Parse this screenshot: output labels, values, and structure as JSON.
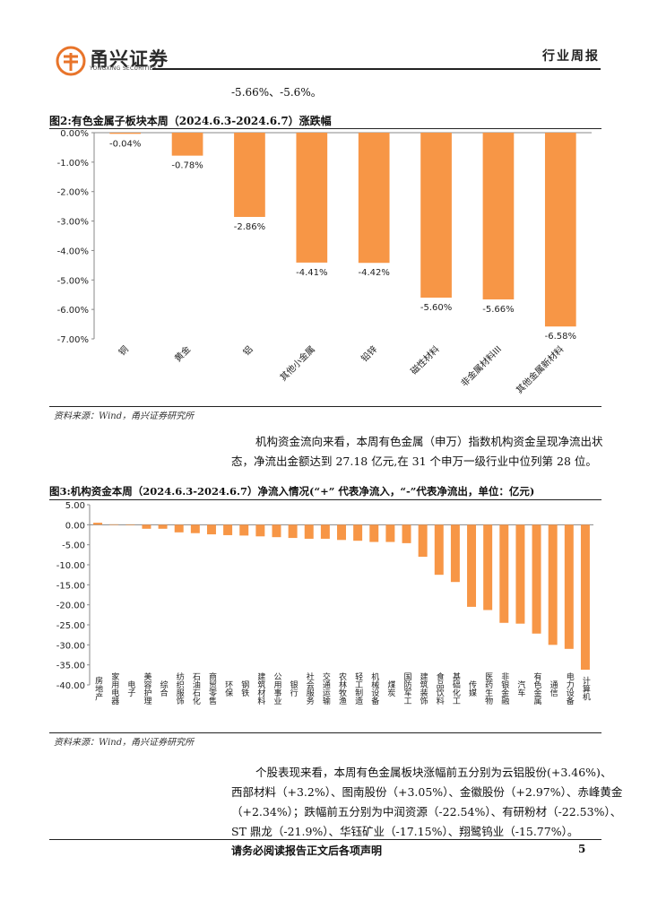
{
  "header": {
    "logo_cn": "甬兴证券",
    "logo_en": "YONGXING SECURITIES",
    "report_type": "行业周报"
  },
  "fragment_text": "-5.66%、-5.6%。",
  "figure2": {
    "title": "图2:有色金属子板块本周（2024.6.3-2024.6.7）涨跌幅",
    "source": "资料来源：Wind，甬兴证券研究所"
  },
  "paragraph1": {
    "line1": "机构资金流向来看，本周有色金属（申万）指数机构资金呈现净流出状",
    "line2": "态，净流出金额达到 27.18 亿元,在 31 个申万一级行业中位列第 28 位。"
  },
  "figure3": {
    "title": "图3:机构资金本周（2024.6.3-2024.6.7）净流入情况(“+” 代表净流入，“-”代表净流出，单位：亿元)",
    "source": "资料来源：Wind，甬兴证券研究所"
  },
  "paragraph2": {
    "line1": "个股表现来看，本周有色金属板块涨幅前五分别为云铝股份(+3.46%)、",
    "line2": "西部材料（+3.2%）、图南股份（+3.05%）、金徽股份（+2.97%）、赤峰黄金",
    "line3": "（+2.34%）；跌幅前五分别为中润资源（-22.54%）、有研粉材（-22.53%）、",
    "line4": "ST 鼎龙（-21.9%）、华钰矿业（-17.15%）、翔鹭钨业（-15.77%）。"
  },
  "footer": {
    "disclaimer": "请务必阅读报告正文后各项声明",
    "page": "5"
  },
  "colors": {
    "bar": "#F79646",
    "accent": "#E8742A"
  },
  "chart_data": [
    {
      "type": "bar",
      "categories": [
        "铜",
        "黄金",
        "铝",
        "其他小金属",
        "铅锌",
        "磁性材料",
        "非金属材料III",
        "其他金属新材料"
      ],
      "values": [
        -0.04,
        -0.78,
        -2.86,
        -4.41,
        -4.42,
        -5.6,
        -5.66,
        -6.58
      ],
      "value_labels": [
        "-0.04%",
        "-0.78%",
        "-2.86%",
        "-4.41%",
        "-4.42%",
        "-5.60%",
        "-5.66%",
        "-6.58%"
      ],
      "yticks": [
        "0.00%",
        "-1.00%",
        "-2.00%",
        "-3.00%",
        "-4.00%",
        "-5.00%",
        "-6.00%",
        "-7.00%"
      ],
      "ylim": [
        -7,
        0
      ],
      "grid": false,
      "legend": "none"
    },
    {
      "type": "bar",
      "categories": [
        "房地产",
        "家用电器",
        "电子",
        "美容护理",
        "综合",
        "纺织服饰",
        "石油石化",
        "商贸零售",
        "环保",
        "钢铁",
        "建筑材料",
        "公用事业",
        "银行",
        "社会服务",
        "交通运输",
        "农林牧渔",
        "轻工制造",
        "机械设备",
        "煤炭",
        "国防军工",
        "建筑装饰",
        "食品饮料",
        "基础化工",
        "传媒",
        "医药生物",
        "非银金融",
        "汽车",
        "有色金属",
        "通信",
        "电力设备",
        "计算机"
      ],
      "values": [
        0.5,
        0.1,
        -0.1,
        -1.0,
        -1.0,
        -1.9,
        -2.1,
        -2.4,
        -2.6,
        -2.7,
        -2.9,
        -3.1,
        -3.3,
        -3.5,
        -3.5,
        -3.8,
        -4.0,
        -4.3,
        -4.3,
        -4.6,
        -8.0,
        -12.5,
        -14.3,
        -20.5,
        -21.3,
        -24.5,
        -24.7,
        -27.18,
        -30.0,
        -31.0,
        -36.2
      ],
      "yticks": [
        "5.00",
        "0.00",
        "-5.00",
        "-10.00",
        "-15.00",
        "-20.00",
        "-25.00",
        "-30.00",
        "-35.00",
        "-40.00"
      ],
      "ylim": [
        -40,
        5
      ],
      "grid": false,
      "legend": "none"
    }
  ]
}
